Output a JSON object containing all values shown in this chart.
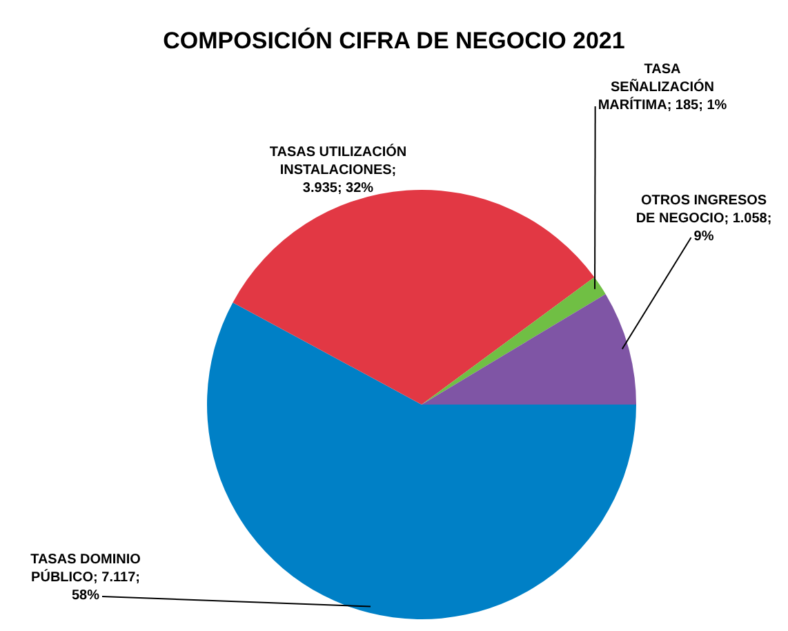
{
  "chart_data": {
    "type": "pie",
    "title": "COMPOSICIÓN CIFRA DE NEGOCIO 2021",
    "categories": [
      "TASAS DOMINIO PÚBLICO",
      "TASAS UTILIZACIÓN INSTALACIONES",
      "TASA SEÑALIZACIÓN MARÍTIMA",
      "OTROS INGRESOS DE NEGOCIO"
    ],
    "values": [
      7117,
      3935,
      185,
      1058
    ],
    "value_labels": [
      "; 7.117; 58%",
      "; 3.935; 32%",
      "; 185; 1%",
      "; 1.058; 9%"
    ],
    "colors": [
      "#0080c6",
      "#e23844",
      "#70bf44",
      "#7f55a5"
    ],
    "legend": false
  }
}
